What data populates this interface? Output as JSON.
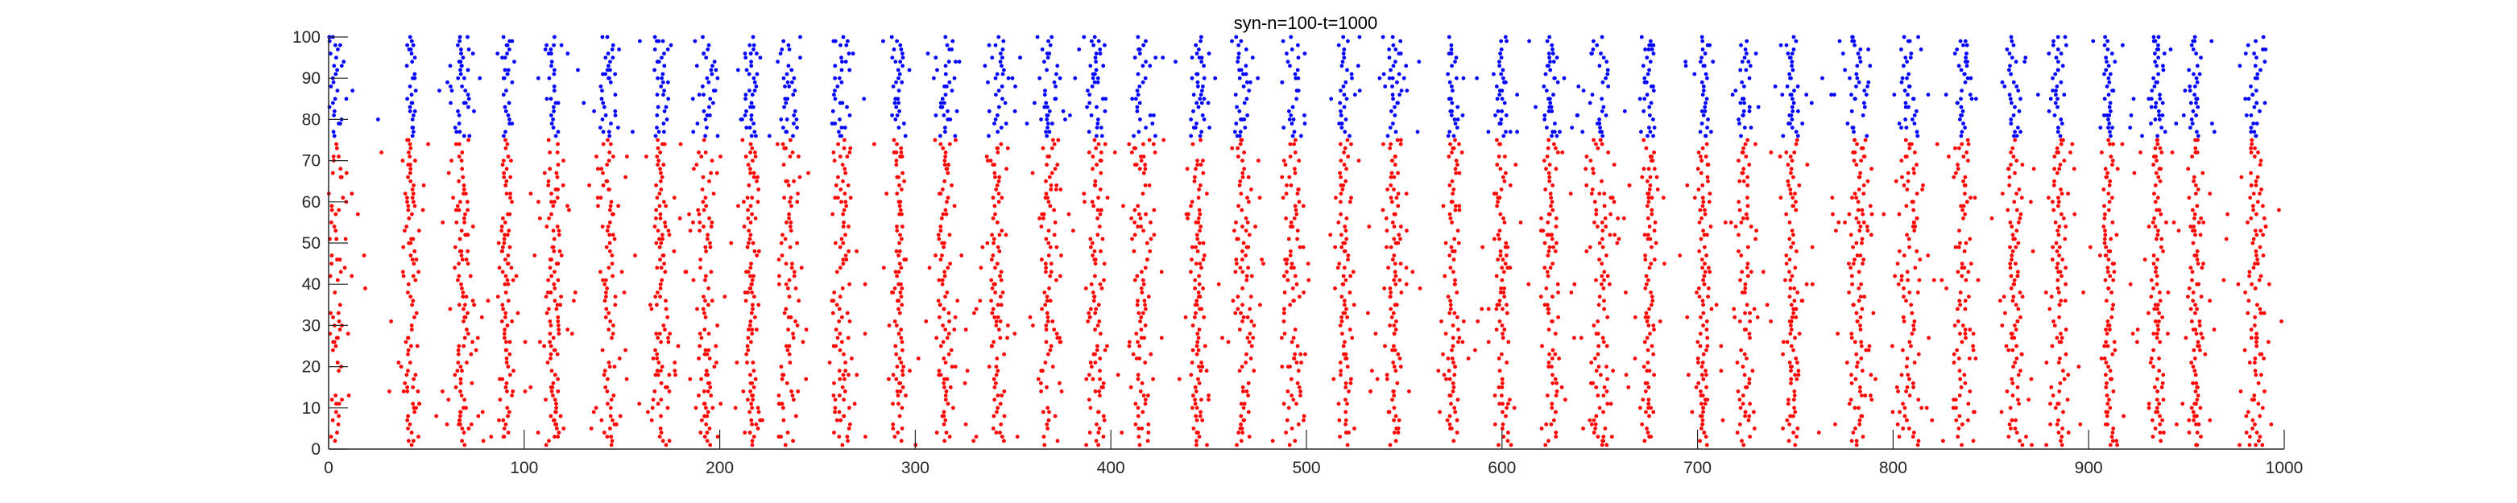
{
  "chart_data": {
    "type": "scatter",
    "title": "syn-n=100-t=1000",
    "xlabel": "",
    "ylabel": "",
    "xlim": [
      0,
      1000
    ],
    "ylim": [
      0,
      100
    ],
    "x_ticks": [
      0,
      100,
      200,
      300,
      400,
      500,
      600,
      700,
      800,
      900,
      1000
    ],
    "y_ticks": [
      0,
      10,
      20,
      30,
      40,
      50,
      60,
      70,
      80,
      90,
      100
    ],
    "grid": false,
    "legend": "none",
    "marker": "dot",
    "neuron_groups": [
      {
        "neurons": [
          1,
          75
        ],
        "color": "#ff0000"
      },
      {
        "neurons": [
          76,
          100
        ],
        "color": "#0000ff"
      }
    ],
    "burst_times": [
      3,
      42,
      68,
      91,
      115,
      143,
      170,
      193,
      216,
      236,
      262,
      291,
      315,
      342,
      368,
      392,
      416,
      445,
      468,
      493,
      520,
      545,
      575,
      600,
      625,
      650,
      675,
      703,
      724,
      748,
      782,
      808,
      836,
      862,
      885,
      910,
      935,
      955,
      985
    ],
    "background_rate": 0.06,
    "seed": 1000
  },
  "colors": {
    "axis": "#262626",
    "background": "#ffffff"
  }
}
